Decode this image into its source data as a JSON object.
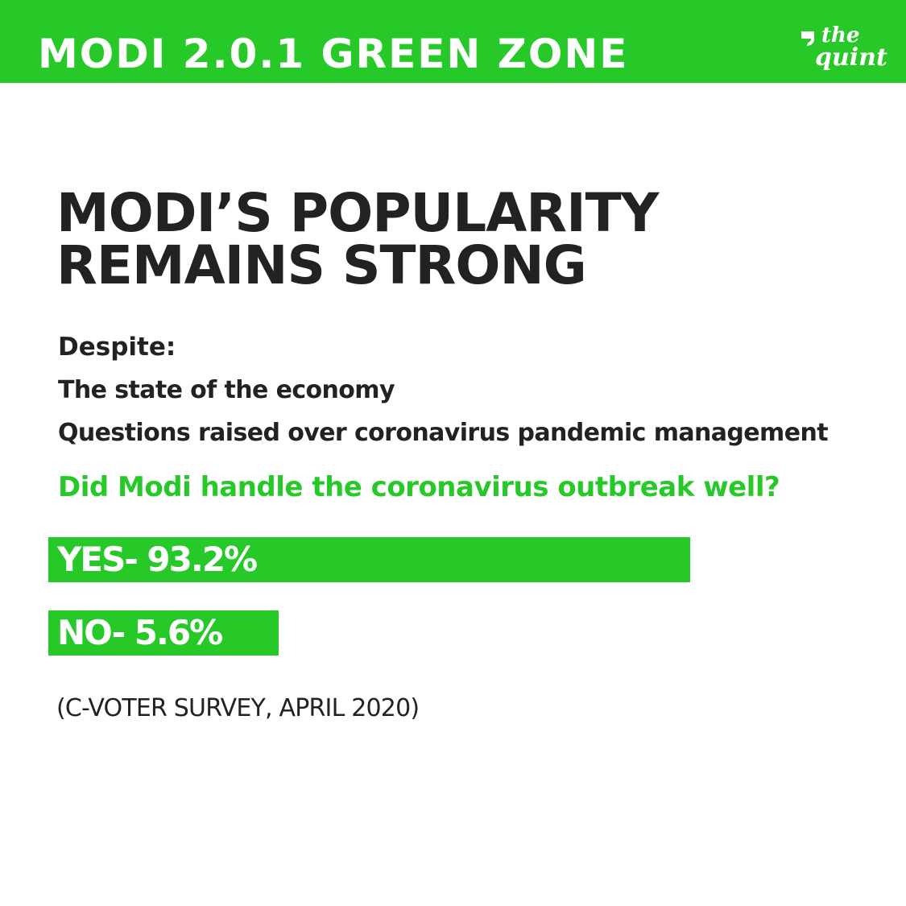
{
  "header": {
    "title": "MODI 2.0.1 GREEN ZONE",
    "logo_top": "the",
    "logo_bottom": "quint"
  },
  "headline": {
    "line1": "MODI’S POPULARITY",
    "line2": "REMAINS STRONG"
  },
  "context": {
    "label": "Despite:",
    "items": [
      "The state of the economy",
      "Questions raised over coronavirus pandemic management"
    ]
  },
  "chart_data": {
    "type": "bar",
    "orientation": "horizontal",
    "title": "Did Modi handle the coronavirus outbreak well?",
    "categories": [
      "YES",
      "NO"
    ],
    "values": [
      93.2,
      5.6
    ],
    "labels": [
      "YES- 93.2%",
      "NO- 5.6%"
    ],
    "grid": false,
    "bar_color": "#27c928"
  },
  "source": "(C-VOTER SURVEY, APRIL 2020)",
  "colors": {
    "brand_green": "#27c928",
    "text_dark": "#222222",
    "background": "#ffffff"
  }
}
